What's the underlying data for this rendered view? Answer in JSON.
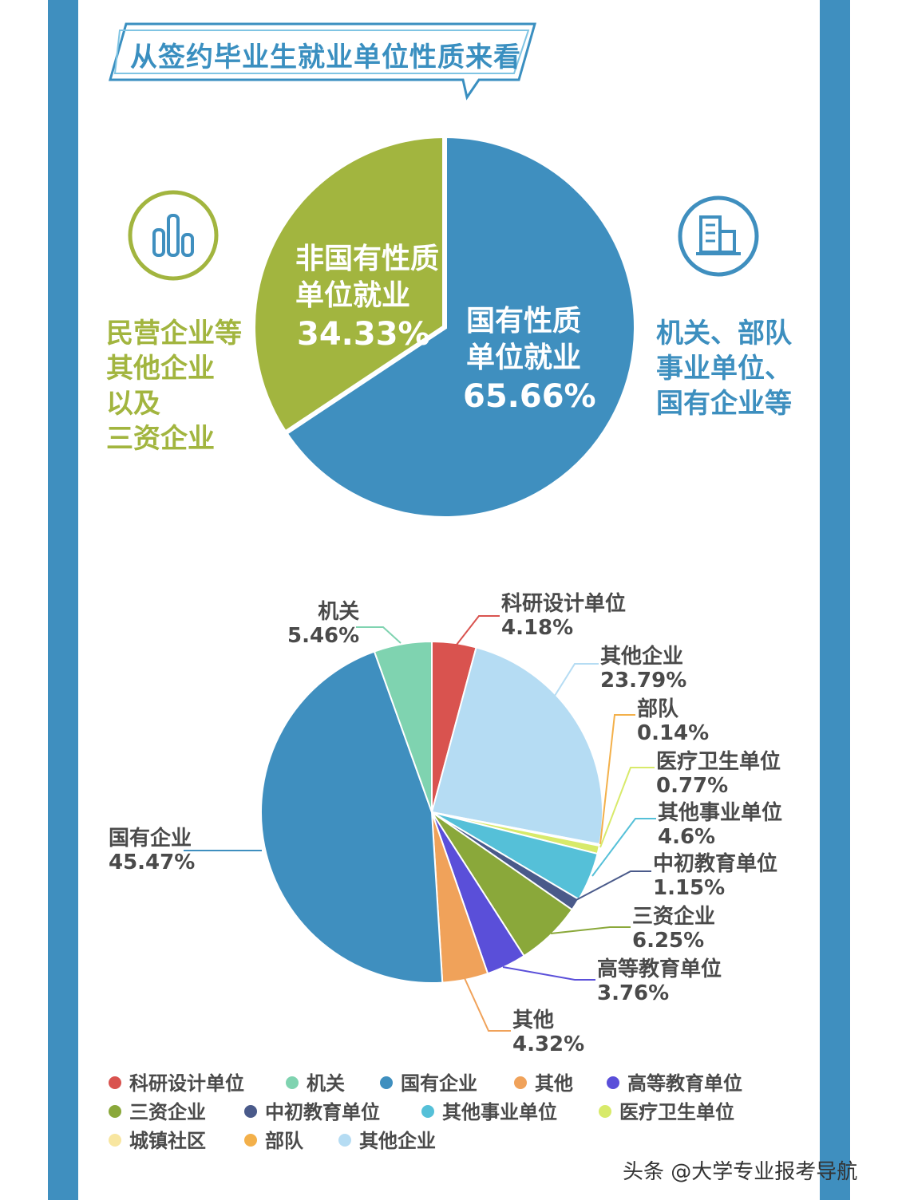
{
  "title": "从签约毕业生就业单位性质来看",
  "summary": {
    "left_icon": "bar-chart-icon",
    "right_icon": "building-icon",
    "left_text": "民营企业等\n其他企业\n以及\n三资企业",
    "right_text": "机关、部队\n事业单位、\n国有企业等",
    "colors": {
      "state": "#3f8fbf",
      "non_state": "#a2b53f"
    }
  },
  "legend": [
    {
      "label": "科研设计单位",
      "color": "#d9534f"
    },
    {
      "label": "机关",
      "color": "#7fd3b0"
    },
    {
      "label": "国有企业",
      "color": "#3f8fbf"
    },
    {
      "label": "其他",
      "color": "#f0a25a"
    },
    {
      "label": "高等教育单位",
      "color": "#5a4fd9"
    },
    {
      "label": "三资企业",
      "color": "#8aa83a"
    },
    {
      "label": "中初教育单位",
      "color": "#4a5a8a"
    },
    {
      "label": "其他事业单位",
      "color": "#55c0d8"
    },
    {
      "label": "医疗卫生单位",
      "color": "#d8ea6a"
    },
    {
      "label": "城镇社区",
      "color": "#f8e6a0"
    },
    {
      "label": "部队",
      "color": "#f3b04a"
    },
    {
      "label": "其他企业",
      "color": "#b5dcf3"
    }
  ],
  "watermark": "头条 @大学专业报考导航",
  "chart_data": [
    {
      "type": "pie",
      "slices": [
        {
          "label": "国有性质\n单位就业",
          "value": 65.66,
          "display": "65.66%",
          "color": "#3f8fbf"
        },
        {
          "label": "非国有性质\n单位就业",
          "value": 34.33,
          "display": "34.33%",
          "color": "#a2b53f"
        }
      ]
    },
    {
      "type": "pie",
      "slices": [
        {
          "label": "科研设计单位",
          "value": 4.18,
          "display": "4.18%",
          "color": "#d9534f"
        },
        {
          "label": "其他企业",
          "value": 23.79,
          "display": "23.79%",
          "color": "#b5dcf3"
        },
        {
          "label": "部队",
          "value": 0.14,
          "display": "0.14%",
          "color": "#f3b04a"
        },
        {
          "label": "医疗卫生单位",
          "value": 0.77,
          "display": "0.77%",
          "color": "#d8ea6a"
        },
        {
          "label": "其他事业单位",
          "value": 4.6,
          "display": "4.6%",
          "color": "#55c0d8"
        },
        {
          "label": "中初教育单位",
          "value": 1.15,
          "display": "1.15%",
          "color": "#4a5a8a"
        },
        {
          "label": "三资企业",
          "value": 6.25,
          "display": "6.25%",
          "color": "#8aa83a"
        },
        {
          "label": "高等教育单位",
          "value": 3.76,
          "display": "3.76%",
          "color": "#5a4fd9"
        },
        {
          "label": "其他",
          "value": 4.32,
          "display": "4.32%",
          "color": "#f0a25a"
        },
        {
          "label": "国有企业",
          "value": 45.47,
          "display": "45.47%",
          "color": "#3f8fbf"
        },
        {
          "label": "机关",
          "value": 5.46,
          "display": "5.46%",
          "color": "#7fd3b0"
        }
      ]
    }
  ]
}
